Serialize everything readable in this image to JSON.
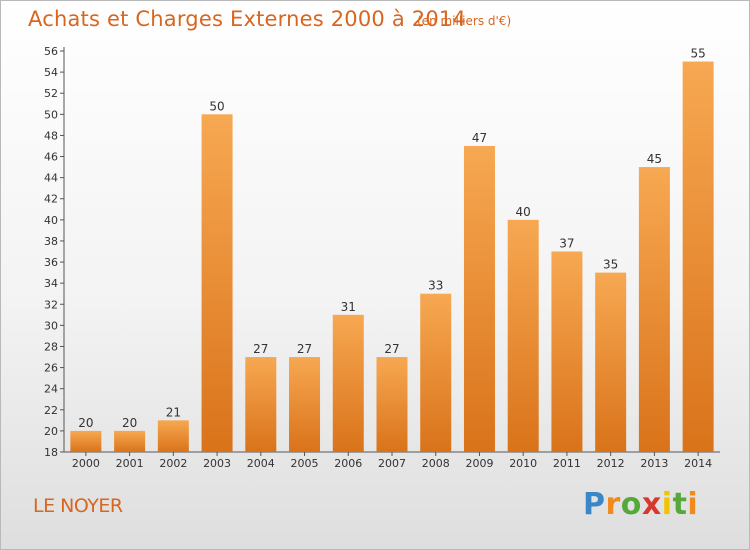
{
  "title": "Achats et Charges Externes 2000 à 2014",
  "subtitle": "(en milliers d'€)",
  "place": "LE NOYER",
  "logo": {
    "p": "P",
    "r": "r",
    "o": "o",
    "x": "x",
    "i1": "i",
    "t": "t",
    "i2": "i"
  },
  "colors": {
    "title": "#d8661f",
    "bar_top": "#f7a852",
    "bar_bottom": "#d9731a"
  },
  "chart_data": {
    "type": "bar",
    "categories": [
      "2000",
      "2001",
      "2002",
      "2003",
      "2004",
      "2005",
      "2006",
      "2007",
      "2008",
      "2009",
      "2010",
      "2011",
      "2012",
      "2013",
      "2014"
    ],
    "values": [
      20,
      20,
      21,
      50,
      27,
      27,
      31,
      27,
      33,
      47,
      40,
      37,
      35,
      45,
      55
    ],
    "ylim": [
      18,
      56
    ],
    "yticks": [
      18,
      20,
      22,
      24,
      26,
      28,
      30,
      32,
      34,
      36,
      38,
      40,
      42,
      44,
      46,
      48,
      50,
      52,
      54,
      56
    ],
    "grid": false,
    "data_labels": true
  }
}
